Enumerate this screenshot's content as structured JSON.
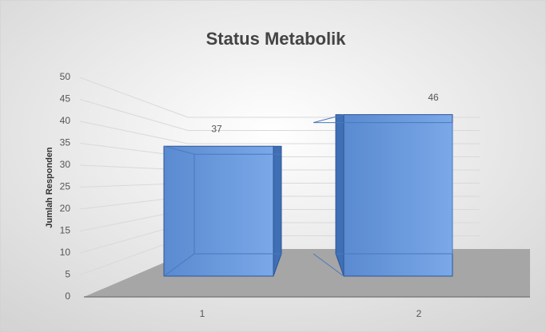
{
  "chart_data": {
    "type": "bar3d",
    "title": "Status Metabolik",
    "y_label": "Jumlah Responden",
    "categories": [
      "1",
      "2"
    ],
    "values": [
      37,
      46
    ],
    "color": "#5b8fd6",
    "ylim": [
      0,
      50
    ],
    "yticks": [
      0,
      5,
      10,
      15,
      20,
      25,
      30,
      35,
      40,
      45,
      50
    ],
    "grid": true
  }
}
